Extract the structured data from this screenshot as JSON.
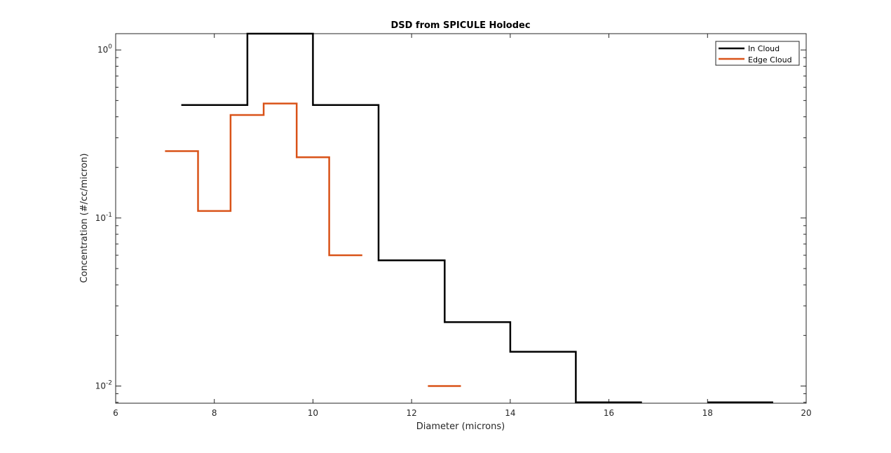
{
  "chart_data": {
    "type": "line",
    "title": "DSD from SPICULE Holodec",
    "xlabel": "Diameter (microns)",
    "ylabel": "Concentration (#/cc/micron)",
    "xlim": [
      6,
      20
    ],
    "ylim": [
      0.0079,
      1.25
    ],
    "yscale": "log",
    "xticks": [
      6,
      8,
      10,
      12,
      14,
      16,
      18,
      20
    ],
    "xtick_labels": [
      "6",
      "8",
      "10",
      "12",
      "14",
      "16",
      "18",
      "20"
    ],
    "yticks": [
      0.01,
      0.1,
      1
    ],
    "ytick_labels": [
      {
        "base": "10",
        "exp": "-2"
      },
      {
        "base": "10",
        "exp": "-1"
      },
      {
        "base": "10",
        "exp": "0"
      }
    ],
    "grid": false,
    "legend_position": "top-right",
    "series": [
      {
        "name": "In Cloud",
        "color": "#000000",
        "style": "stairs",
        "segments": [
          [
            [
              7.33,
              0.47
            ],
            [
              8.67,
              0.47
            ],
            [
              8.67,
              1.25
            ],
            [
              10.0,
              1.25
            ],
            [
              10.0,
              0.47
            ],
            [
              11.33,
              0.47
            ],
            [
              11.33,
              0.056
            ],
            [
              12.67,
              0.056
            ],
            [
              12.67,
              0.024
            ],
            [
              14.0,
              0.024
            ],
            [
              14.0,
              0.016
            ],
            [
              15.33,
              0.016
            ],
            [
              15.33,
              0.008
            ],
            [
              16.67,
              0.008
            ]
          ],
          [
            [
              18.0,
              0.008
            ],
            [
              19.33,
              0.008
            ]
          ]
        ]
      },
      {
        "name": "Edge Cloud",
        "color": "#D95319",
        "style": "stairs",
        "segments": [
          [
            [
              7.0,
              0.25
            ],
            [
              7.67,
              0.25
            ],
            [
              7.67,
              0.11
            ],
            [
              8.33,
              0.11
            ],
            [
              8.33,
              0.41
            ],
            [
              9.0,
              0.41
            ],
            [
              9.0,
              0.48
            ],
            [
              9.67,
              0.48
            ],
            [
              9.67,
              0.23
            ],
            [
              10.33,
              0.23
            ],
            [
              10.33,
              0.06
            ],
            [
              11.0,
              0.06
            ]
          ],
          [
            [
              12.33,
              0.01
            ],
            [
              13.0,
              0.01
            ]
          ]
        ]
      }
    ]
  }
}
